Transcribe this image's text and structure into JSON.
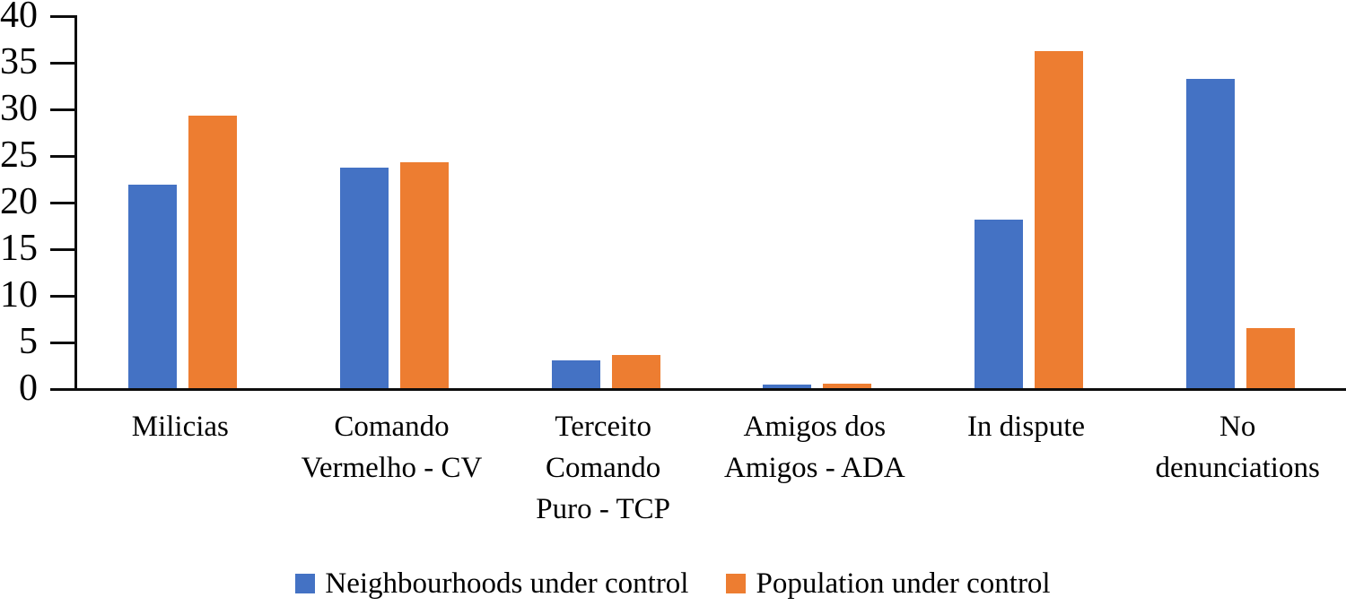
{
  "chart_data": {
    "type": "bar",
    "title": "",
    "xlabel": "",
    "ylabel": "",
    "ylim": [
      0,
      40
    ],
    "yticks": [
      0,
      5,
      10,
      15,
      20,
      25,
      30,
      35,
      40
    ],
    "grid": false,
    "legend_position": "bottom",
    "axis_color": "#0d0d0d",
    "categories": [
      "Milicias",
      "Comando Vermelho - CV",
      "Terceito Comando Puro - TCP",
      "Amigos dos Amigos - ADA",
      "In dispute",
      "No denunciations"
    ],
    "category_lines": [
      [
        "Milicias"
      ],
      [
        "Comando",
        "Vermelho - CV"
      ],
      [
        "Terceito",
        "Comando",
        "Puro - TCP"
      ],
      [
        "Amigos dos",
        "Amigos - ADA"
      ],
      [
        "In dispute"
      ],
      [
        "No",
        "denunciations"
      ]
    ],
    "series": [
      {
        "name": "Neighbourhoods under control",
        "color": "#4472C4",
        "values": [
          21.8,
          23.7,
          3.0,
          0.4,
          18.1,
          33.2
        ]
      },
      {
        "name": "Population under control",
        "color": "#ED7D31",
        "values": [
          29.2,
          24.2,
          3.6,
          0.5,
          36.2,
          6.4
        ]
      }
    ]
  }
}
